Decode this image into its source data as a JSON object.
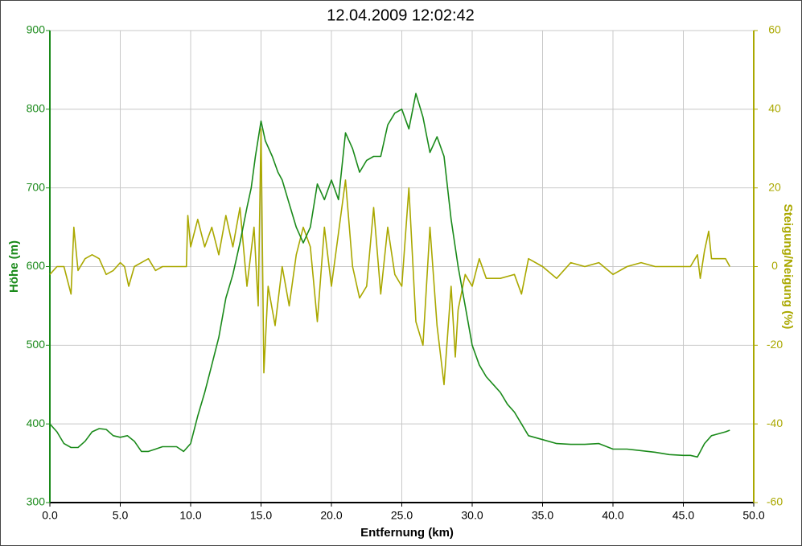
{
  "chart_data": {
    "type": "line",
    "title": "12.04.2009 12:02:42",
    "x_label": "Entfernung (km)",
    "y_label": "Höhe (m)",
    "y2_label": "Steigung/Neigung (%)",
    "grid": true,
    "xlim": [
      0,
      50
    ],
    "xticks": [
      {
        "value": 0,
        "label": "0.0"
      },
      {
        "value": 5,
        "label": "5.0"
      },
      {
        "value": 10,
        "label": "10.0"
      },
      {
        "value": 15,
        "label": "15.0"
      },
      {
        "value": 20,
        "label": "20.0"
      },
      {
        "value": 25,
        "label": "25.0"
      },
      {
        "value": 30,
        "label": "30.0"
      },
      {
        "value": 35,
        "label": "35.0"
      },
      {
        "value": 40,
        "label": "40.0"
      },
      {
        "value": 45,
        "label": "45.0"
      },
      {
        "value": 50,
        "label": "50.0"
      }
    ],
    "ylim": [
      300,
      900
    ],
    "yticks": [
      300,
      400,
      500,
      600,
      700,
      800,
      900
    ],
    "y2lim": [
      -60,
      60
    ],
    "y2ticks": [
      -60,
      -40,
      -20,
      0,
      20,
      40,
      60
    ],
    "y_color": "#1a8a1a",
    "y2_color": "#aaa800",
    "series": [
      {
        "color": "#1a8a1a",
        "x": [
          0,
          0.5,
          1,
          1.5,
          2,
          2.5,
          3,
          3.5,
          4,
          4.5,
          5,
          5.5,
          6,
          6.5,
          7,
          7.5,
          8,
          9,
          9.5,
          10,
          10.5,
          11,
          11.5,
          12,
          12.5,
          13,
          13.5,
          14,
          14.3,
          14.6,
          15,
          15.3,
          15.8,
          16.2,
          16.5,
          17,
          17.5,
          18,
          18.5,
          19,
          19.5,
          20,
          20.5,
          21,
          21.5,
          22,
          22.5,
          23,
          23.5,
          24,
          24.5,
          25,
          25.5,
          26,
          26.5,
          27,
          27.5,
          28,
          28.5,
          29,
          29.5,
          30,
          30.5,
          31,
          31.5,
          32,
          32.5,
          33,
          33.5,
          34,
          35,
          36,
          37,
          38,
          39,
          40,
          41,
          42,
          43,
          44,
          45,
          45.5,
          46,
          46.5,
          47,
          48,
          48.3
        ],
        "values": [
          400,
          390,
          375,
          370,
          370,
          378,
          390,
          394,
          393,
          385,
          383,
          385,
          378,
          365,
          365,
          368,
          371,
          371,
          365,
          375,
          410,
          440,
          475,
          510,
          560,
          590,
          630,
          675,
          700,
          740,
          785,
          760,
          740,
          720,
          710,
          680,
          650,
          630,
          650,
          705,
          685,
          710,
          685,
          770,
          750,
          720,
          735,
          740,
          740,
          780,
          795,
          800,
          775,
          820,
          790,
          745,
          765,
          740,
          660,
          600,
          550,
          500,
          475,
          460,
          450,
          440,
          425,
          415,
          400,
          385,
          380,
          375,
          374,
          374,
          375,
          368,
          368,
          366,
          364,
          361,
          360,
          360,
          358,
          375,
          385,
          390,
          392
        ]
      },
      {
        "color": "#aaa800",
        "axis": "y2",
        "x": [
          0,
          0.5,
          1,
          1.5,
          1.7,
          2,
          2.5,
          3,
          3.5,
          4,
          4.5,
          5,
          5.3,
          5.6,
          6,
          6.5,
          7,
          7.5,
          8,
          9,
          9.7,
          9.8,
          10,
          10.5,
          11,
          11.5,
          12,
          12.5,
          13,
          13.5,
          14,
          14.5,
          14.8,
          15,
          15.2,
          15.5,
          16,
          16.5,
          17,
          17.5,
          18,
          18.5,
          19,
          19.5,
          20,
          21,
          21.5,
          22,
          22.5,
          23,
          23.5,
          24,
          24.5,
          25,
          25.5,
          26,
          26.5,
          27,
          27.5,
          28,
          28.5,
          28.8,
          29,
          29.5,
          30,
          30.5,
          31,
          32,
          33,
          33.5,
          34,
          35,
          36,
          37,
          38,
          39,
          40,
          41,
          42,
          43,
          44,
          45,
          45.5,
          46,
          46.2,
          46.5,
          46.8,
          47,
          48,
          48.3
        ],
        "values": [
          -2,
          0,
          0,
          -7,
          10,
          -1,
          2,
          3,
          2,
          -2,
          -1,
          1,
          0,
          -5,
          0,
          1,
          2,
          -1,
          0,
          0,
          0,
          13,
          5,
          12,
          5,
          10,
          3,
          13,
          5,
          15,
          -5,
          10,
          -10,
          35,
          -27,
          -5,
          -15,
          0,
          -10,
          3,
          10,
          5,
          -14,
          10,
          -5,
          22,
          0,
          -8,
          -5,
          15,
          -7,
          10,
          -2,
          -5,
          20,
          -14,
          -20,
          10,
          -15,
          -30,
          -5,
          -23,
          -11,
          -2,
          -5,
          2,
          -3,
          -3,
          -2,
          -7,
          2,
          0,
          -3,
          1,
          0,
          1,
          -2,
          0,
          1,
          0,
          0,
          0,
          0,
          3,
          -3,
          4,
          9,
          2,
          2,
          0
        ]
      }
    ]
  }
}
